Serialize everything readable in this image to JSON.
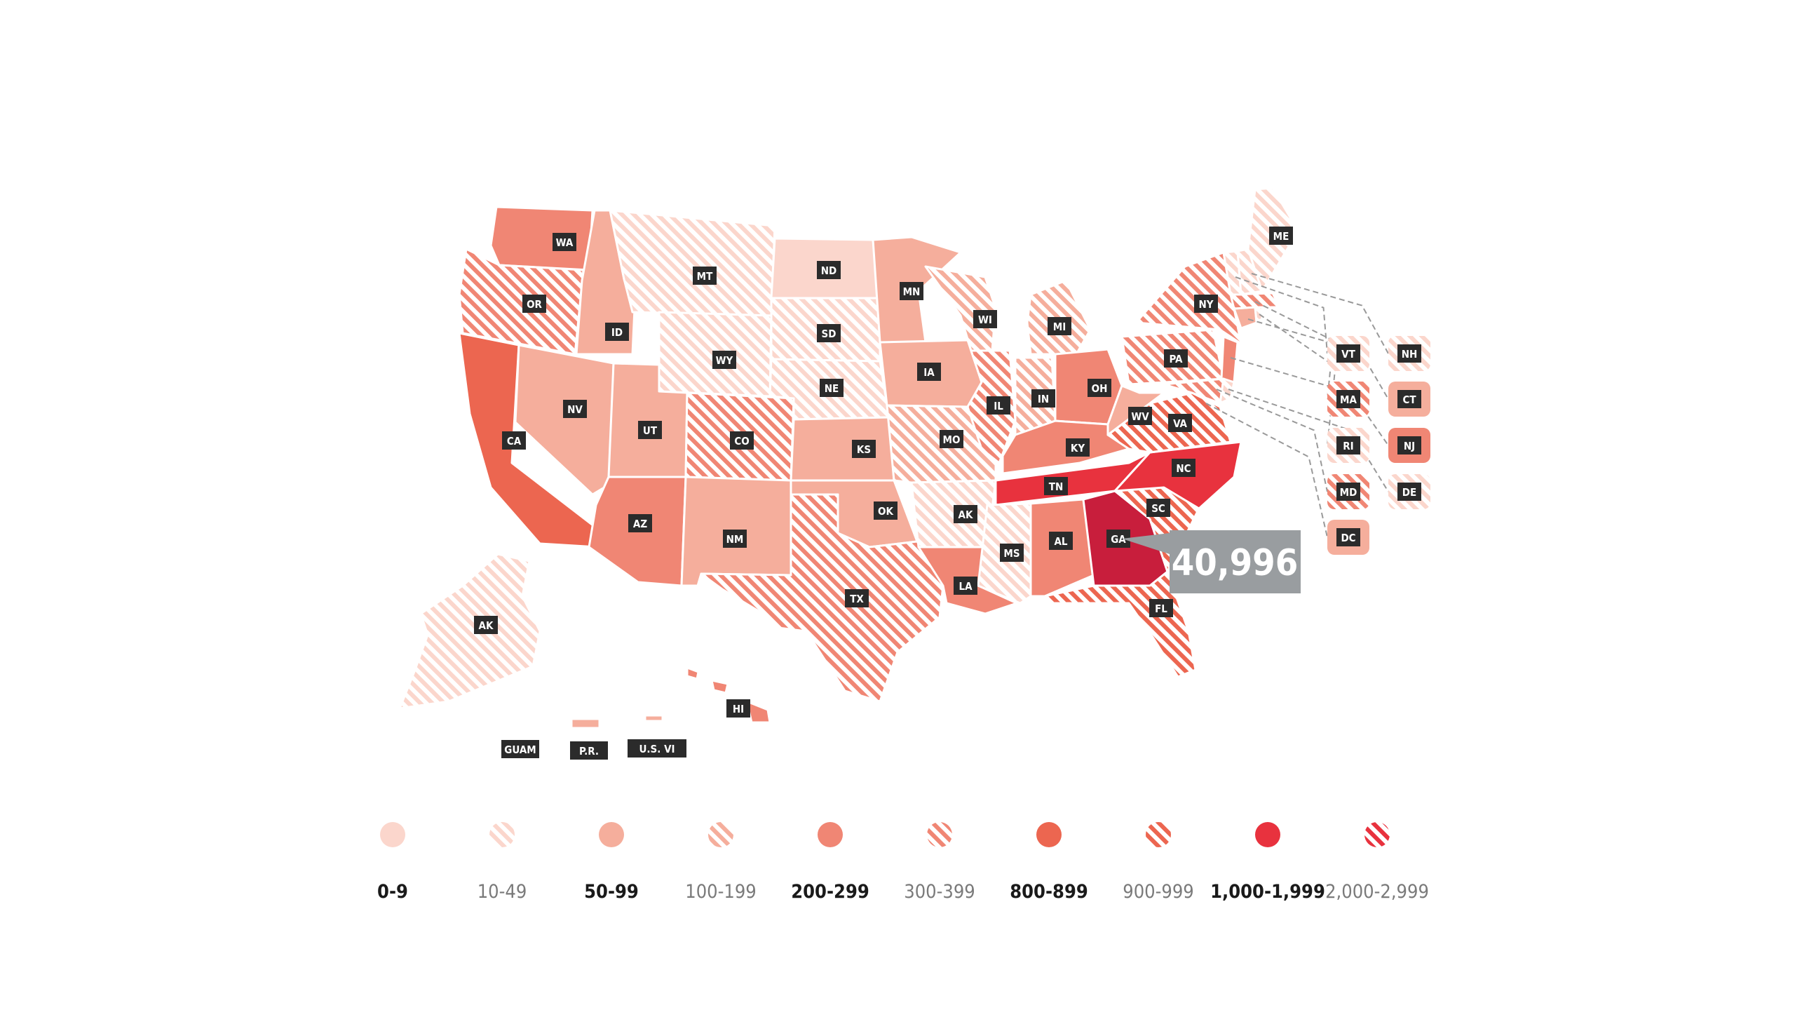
{
  "colors": {
    "s0": "#fbd6cc",
    "s2": "#f5ae9c",
    "s4": "#f08674",
    "s6": "#ec6650",
    "s8": "#e8323e",
    "ga": "#c81e3c",
    "label_bg": "#2b2b2b",
    "label_text": "#ffffff",
    "callout_bg": "#999da0",
    "callout_text": "#ffffff",
    "legend_dark_text": "#1a1a1a",
    "legend_light_text": "#7a7a7a"
  },
  "state_labels": {
    "WA": "WA",
    "OR": "OR",
    "CA": "CA",
    "ID": "ID",
    "NV": "NV",
    "MT": "MT",
    "WY": "WY",
    "UT": "UT",
    "AZ": "AZ",
    "CO": "CO",
    "NM": "NM",
    "ND": "ND",
    "SD": "SD",
    "NE": "NE",
    "KS": "KS",
    "OK": "OK",
    "TX": "TX",
    "MN": "MN",
    "IA": "IA",
    "MO": "MO",
    "AR": "AK",
    "LA": "LA",
    "WI": "WI",
    "IL": "IL",
    "MI": "MI",
    "IN": "IN",
    "OH": "OH",
    "KY": "KY",
    "TN": "TN",
    "MS": "MS",
    "AL": "AL",
    "GA": "GA",
    "FL": "FL",
    "SC": "SC",
    "NC": "NC",
    "VA": "VA",
    "WV": "WV",
    "PA": "PA",
    "NY": "NY",
    "ME": "ME",
    "AK": "AK",
    "HI": "HI",
    "GUAM": "GUAM",
    "PR": "P.R.",
    "USVI": "U.S. VI",
    "VT": "VT",
    "NH": "NH",
    "MA": "MA",
    "CT": "CT",
    "RI": "RI",
    "NJ": "NJ",
    "MD": "MD",
    "DE": "DE",
    "DC": "DC"
  },
  "callout": {
    "state": "GA",
    "value": "40,996"
  },
  "legend": [
    {
      "label": "0-9",
      "color": "#fbd6cc",
      "hatched": false
    },
    {
      "label": "10-49",
      "color": "#fbd6cc",
      "hatched": true
    },
    {
      "label": "50-99",
      "color": "#f5ae9c",
      "hatched": false
    },
    {
      "label": "100-199",
      "color": "#f5ae9c",
      "hatched": true
    },
    {
      "label": "200-299",
      "color": "#f08674",
      "hatched": false
    },
    {
      "label": "300-399",
      "color": "#f08674",
      "hatched": true
    },
    {
      "label": "800-899",
      "color": "#ec6650",
      "hatched": false
    },
    {
      "label": "900-999",
      "color": "#ec6650",
      "hatched": true
    },
    {
      "label": "1,000-1,999",
      "color": "#e8323e",
      "hatched": false
    },
    {
      "label": "2,000-2,999",
      "color": "#e8323e",
      "hatched": true
    }
  ]
}
